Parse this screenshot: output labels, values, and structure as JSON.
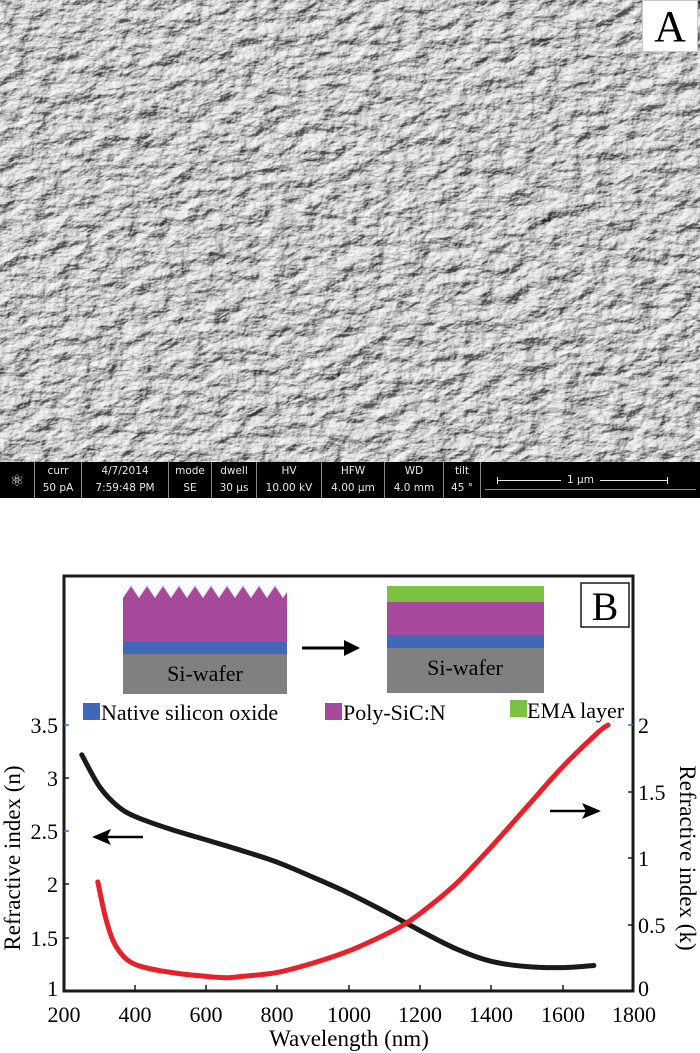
{
  "panel_a": {
    "label": "A",
    "image_description": "SEM micrograph of polycrystalline SiC:N surface with faceted grains, tilted view",
    "info_bar": {
      "fields": [
        {
          "label": "curr",
          "value": "50 pA"
        },
        {
          "label": "4/7/2014",
          "value": "7:59:48 PM"
        },
        {
          "label": "mode",
          "value": "SE"
        },
        {
          "label": "dwell",
          "value": "30 µs"
        },
        {
          "label": "HV",
          "value": "10.00 kV"
        },
        {
          "label": "HFW",
          "value": "4.00 µm"
        },
        {
          "label": "WD",
          "value": "4.0 mm"
        },
        {
          "label": "tilt",
          "value": "45 °"
        }
      ],
      "scale_bar": "1 µm"
    }
  },
  "panel_b": {
    "label": "B",
    "schematic": {
      "before_substrate": "Si-wafer",
      "after_substrate": "Si-wafer",
      "legend": [
        {
          "label": "Native silicon oxide",
          "color": "#3f68b8"
        },
        {
          "label": "Poly-SiC:N",
          "color": "#a84a9c"
        },
        {
          "label": "EMA layer",
          "color": "#7cc242"
        }
      ],
      "wafer_color": "#808080"
    }
  },
  "chart_data": {
    "type": "line",
    "title": "",
    "xlabel": "Wavelength (nm)",
    "ylabel": "Refractive index (n)",
    "y2label": "Refractive index (k)",
    "xlim": [
      200,
      1800
    ],
    "ylim": [
      1,
      3.5
    ],
    "y2lim": [
      0,
      2
    ],
    "x_ticks": [
      "200",
      "400",
      "600",
      "800",
      "1000",
      "1200",
      "1400",
      "1600",
      "1800"
    ],
    "y_ticks": [
      "1",
      "1.5",
      "2",
      "2.5",
      "3",
      "3.5"
    ],
    "y2_ticks": [
      "0",
      "0.5",
      "1",
      "1.5",
      "2"
    ],
    "grid": false,
    "series": [
      {
        "name": "n",
        "axis": "left",
        "color": "#1a1a1a",
        "x": [
          250,
          300,
          350,
          400,
          500,
          600,
          700,
          800,
          900,
          1000,
          1100,
          1200,
          1300,
          1400,
          1500,
          1600,
          1690
        ],
        "values": [
          3.22,
          2.92,
          2.74,
          2.64,
          2.52,
          2.42,
          2.32,
          2.21,
          2.07,
          1.92,
          1.75,
          1.57,
          1.4,
          1.28,
          1.23,
          1.22,
          1.24
        ]
      },
      {
        "name": "k",
        "axis": "right",
        "color": "#e8202a",
        "x": [
          295,
          320,
          350,
          400,
          500,
          600,
          660,
          700,
          800,
          900,
          1000,
          1100,
          1150,
          1200,
          1300,
          1400,
          1500,
          1600,
          1700,
          1730
        ],
        "values": [
          0.82,
          0.52,
          0.32,
          0.2,
          0.14,
          0.11,
          0.1,
          0.11,
          0.14,
          0.21,
          0.3,
          0.42,
          0.49,
          0.58,
          0.8,
          1.08,
          1.38,
          1.68,
          1.94,
          2.0
        ]
      }
    ],
    "annotations": [
      {
        "type": "arrow",
        "direction": "left",
        "near_x": 300,
        "near_y": 2.45,
        "meaning": "n curve uses left axis"
      },
      {
        "type": "arrow",
        "direction": "right",
        "near_x": 1680,
        "near_y_k": 1.37,
        "meaning": "k curve uses right axis"
      }
    ]
  }
}
